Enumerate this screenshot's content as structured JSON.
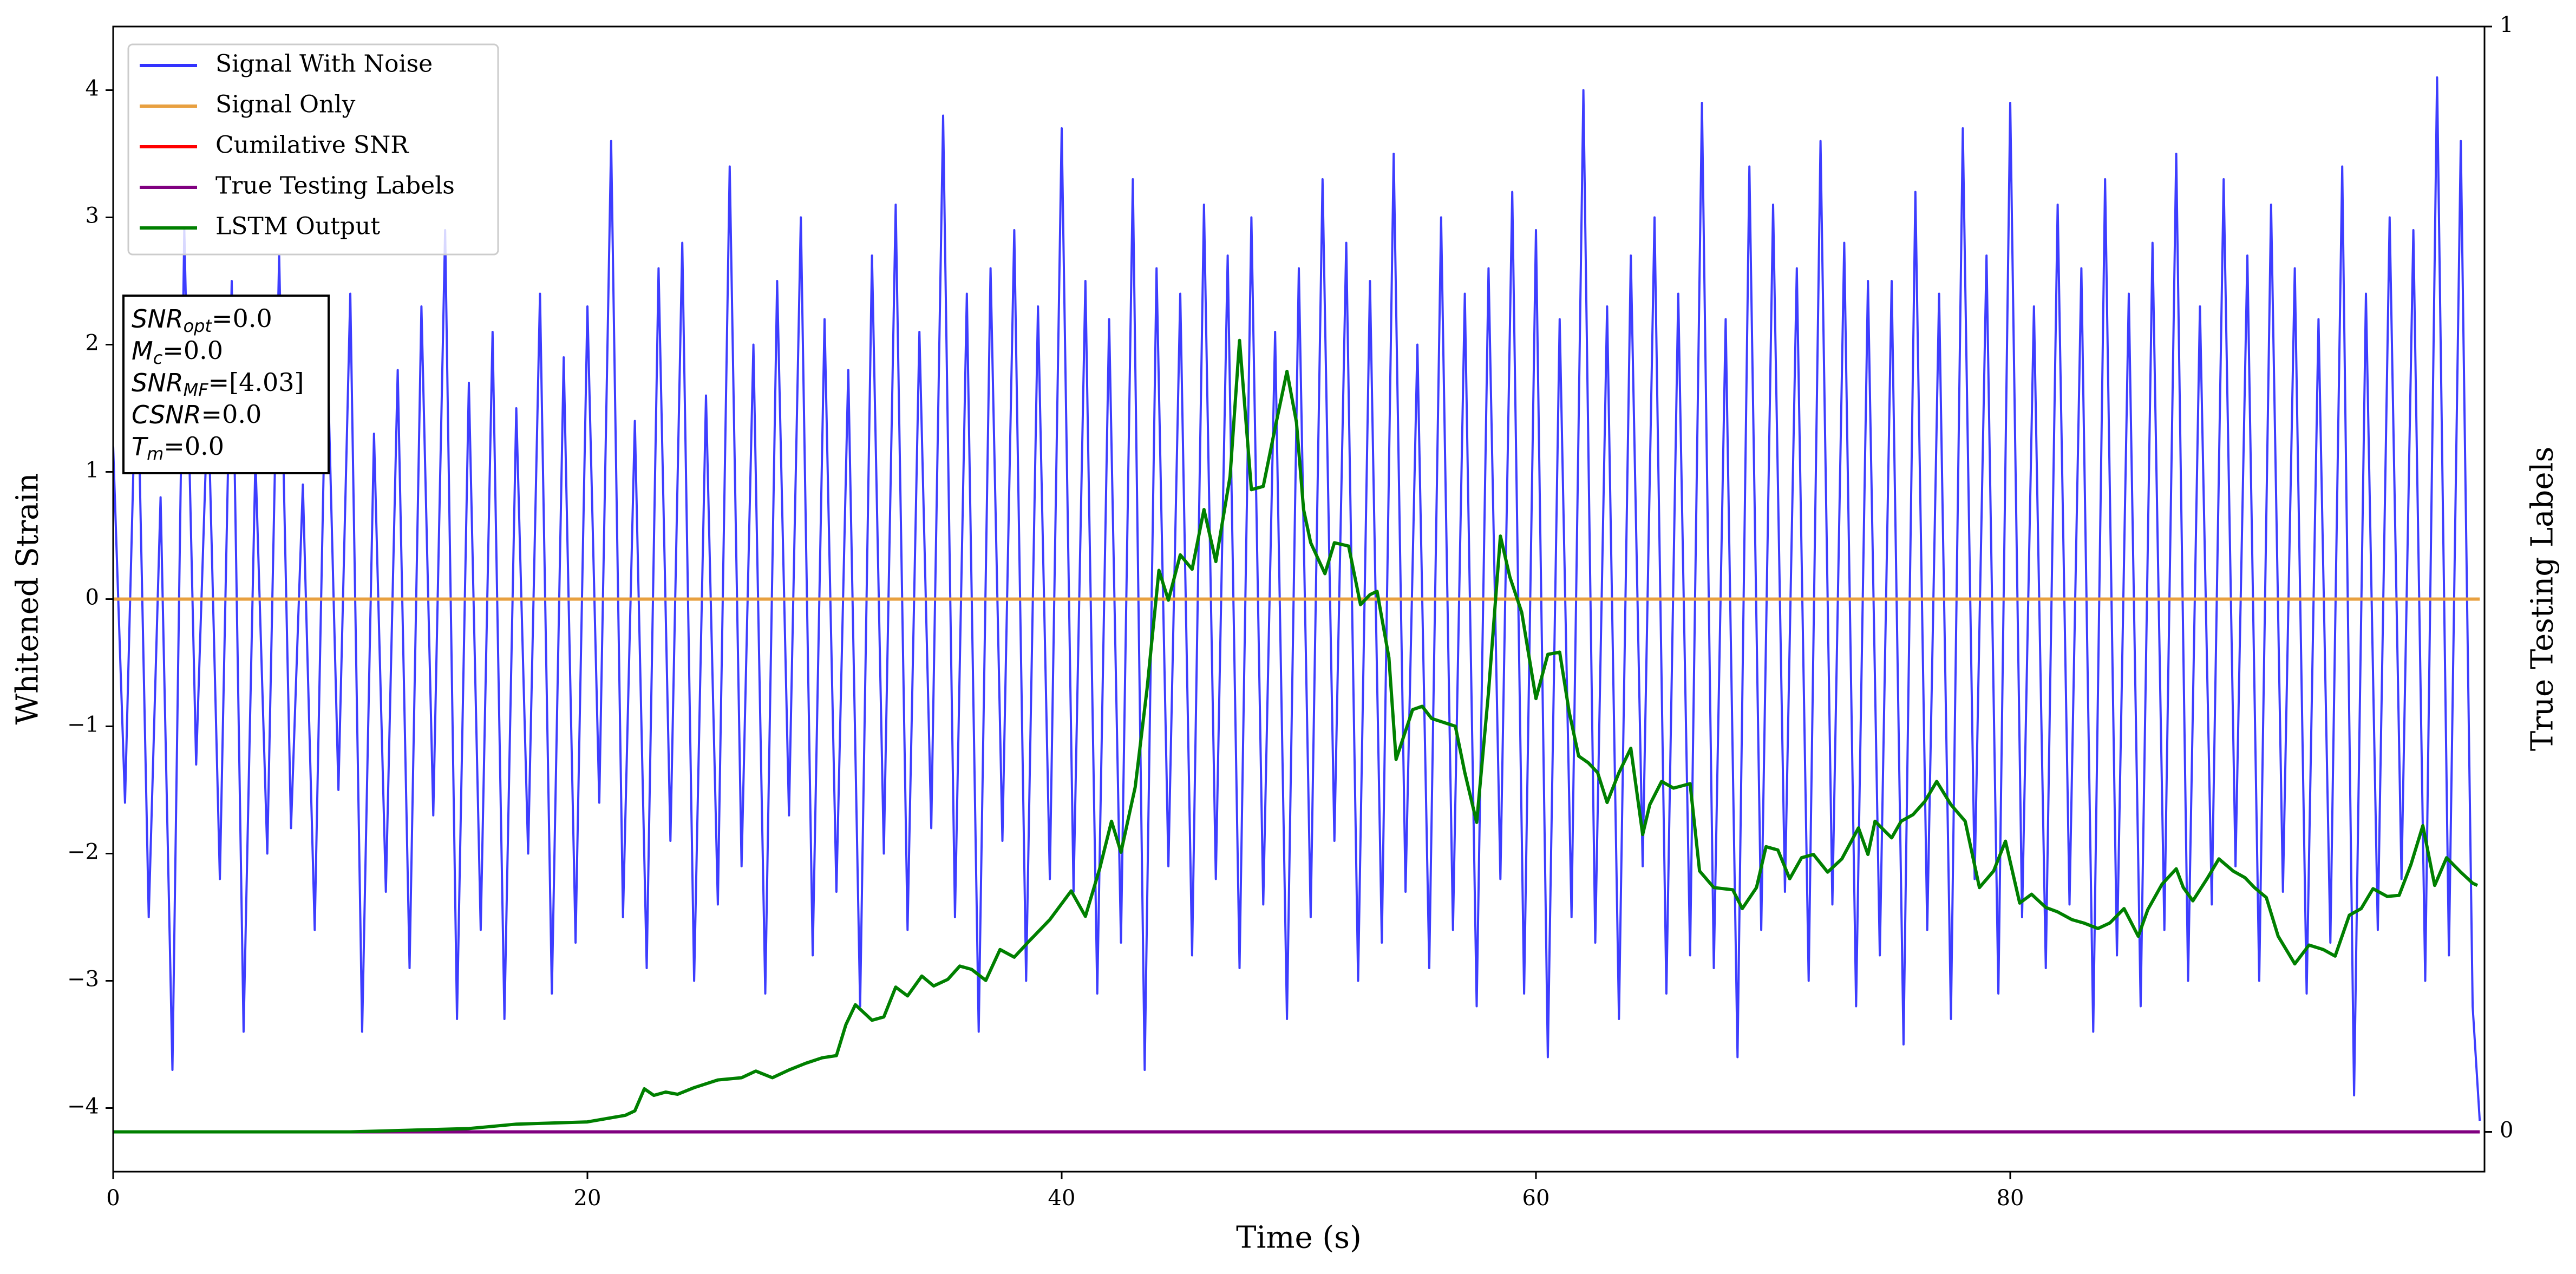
{
  "chart_data": {
    "type": "line",
    "xlabel": "Time (s)",
    "ylabel": "Whitened Strain",
    "y2label": "True Testing Labels",
    "xlim": [
      0,
      100
    ],
    "ylim": [
      -4.5,
      4.5
    ],
    "y2lim": [
      -0.036,
      1
    ],
    "xticks": [
      0,
      20,
      40,
      60,
      80
    ],
    "yticks": [
      {
        "value": -4,
        "label": "−4"
      },
      {
        "value": -3,
        "label": "−3"
      },
      {
        "value": -2,
        "label": "−2"
      },
      {
        "value": -1,
        "label": "−1"
      },
      0,
      1,
      2,
      3,
      4
    ],
    "y2ticks": [
      0,
      1
    ],
    "grid": false,
    "legend": "upper left",
    "annotations": [
      {
        "symbol": "SNR",
        "sub": "opt",
        "text": "=0.0"
      },
      {
        "symbol": "M",
        "sub": "c",
        "text": "=0.0"
      },
      {
        "symbol": "SNR",
        "sub": "MF",
        "text": "=[4.03]"
      },
      {
        "symbol": "CSNR",
        "text": "=0.0"
      },
      {
        "symbol": "T",
        "sub": "m",
        "text": "=0.0"
      }
    ],
    "series": [
      {
        "name": "Signal With Noise",
        "color": "#3333ff",
        "x": [
          0,
          0.5,
          1,
          1.5,
          2,
          2.5,
          3,
          3.5,
          4,
          4.5,
          5,
          5.5,
          6,
          6.5,
          7,
          7.5,
          8,
          8.5,
          9,
          9.5,
          10,
          10.5,
          11,
          11.5,
          12,
          12.5,
          13,
          13.5,
          14,
          14.5,
          15,
          15.5,
          16,
          16.5,
          17,
          17.5,
          18,
          18.5,
          19,
          19.5,
          20,
          20.5,
          21,
          21.5,
          22,
          22.5,
          23,
          23.5,
          24,
          24.5,
          25,
          25.5,
          26,
          26.5,
          27,
          27.5,
          28,
          28.5,
          29,
          29.5,
          30,
          30.5,
          31,
          31.5,
          32,
          32.5,
          33,
          33.5,
          34,
          34.5,
          35,
          35.5,
          36,
          36.5,
          37,
          37.5,
          38,
          38.5,
          39,
          39.5,
          40,
          40.5,
          41,
          41.5,
          42,
          42.5,
          43,
          43.5,
          44,
          44.5,
          45,
          45.5,
          46,
          46.5,
          47,
          47.5,
          48,
          48.5,
          49,
          49.5,
          50,
          50.5,
          51,
          51.5,
          52,
          52.5,
          53,
          53.5,
          54,
          54.5,
          55,
          55.5,
          56,
          56.5,
          57,
          57.5,
          58,
          58.5,
          59,
          59.5,
          60,
          60.5,
          61,
          61.5,
          62,
          62.5,
          63,
          63.5,
          64,
          64.5,
          65,
          65.5,
          66,
          66.5,
          67,
          67.5,
          68,
          68.5,
          69,
          69.5,
          70,
          70.5,
          71,
          71.5,
          72,
          72.5,
          73,
          73.5,
          74,
          74.5,
          75,
          75.5,
          76,
          76.5,
          77,
          77.5,
          78,
          78.5,
          79,
          79.5,
          80,
          80.5,
          81,
          81.5,
          82,
          82.5,
          83,
          83.5,
          84,
          84.5,
          85,
          85.5,
          86,
          86.5,
          87,
          87.5,
          88,
          88.5,
          89,
          89.5,
          90,
          90.5,
          91,
          91.5,
          92,
          92.5,
          93,
          93.5,
          94,
          94.5,
          95,
          95.5,
          96,
          96.5,
          97,
          97.5,
          98,
          98.5,
          99,
          99.5,
          99.8
        ],
        "values": [
          1.2,
          -1.6,
          2.1,
          -2.5,
          0.8,
          -3.7,
          2.9,
          -1.3,
          1.6,
          -2.2,
          2.5,
          -3.4,
          1.1,
          -2.0,
          2.7,
          -1.8,
          0.9,
          -2.6,
          2.2,
          -1.5,
          2.4,
          -3.4,
          1.3,
          -2.3,
          1.8,
          -2.9,
          2.3,
          -1.7,
          2.9,
          -3.3,
          1.7,
          -2.6,
          2.1,
          -3.3,
          1.5,
          -2.0,
          2.4,
          -3.1,
          1.9,
          -2.7,
          2.3,
          -1.6,
          3.6,
          -2.5,
          1.4,
          -2.9,
          2.6,
          -1.9,
          2.8,
          -3.0,
          1.6,
          -2.4,
          3.4,
          -2.1,
          2.0,
          -3.1,
          2.5,
          -1.7,
          3.0,
          -2.8,
          2.2,
          -2.3,
          1.8,
          -3.2,
          2.7,
          -2.0,
          3.1,
          -2.6,
          2.1,
          -1.8,
          3.8,
          -2.5,
          2.4,
          -3.4,
          2.6,
          -1.9,
          2.9,
          -3.0,
          2.3,
          -2.2,
          3.7,
          -2.3,
          2.5,
          -3.1,
          2.2,
          -2.7,
          3.3,
          -3.7,
          2.6,
          -2.1,
          2.4,
          -2.8,
          3.1,
          -2.2,
          2.7,
          -2.9,
          3.0,
          -2.4,
          2.1,
          -3.3,
          2.6,
          -2.5,
          3.3,
          -1.9,
          2.8,
          -3.0,
          2.5,
          -2.7,
          3.5,
          -2.3,
          2.0,
          -2.9,
          3.0,
          -2.6,
          2.4,
          -3.2,
          2.6,
          -2.2,
          3.2,
          -3.1,
          2.9,
          -3.6,
          2.2,
          -2.5,
          4.0,
          -2.7,
          2.3,
          -3.3,
          2.7,
          -2.1,
          3.0,
          -3.1,
          2.4,
          -2.8,
          3.9,
          -2.9,
          2.2,
          -3.6,
          3.4,
          -2.6,
          3.1,
          -2.3,
          2.6,
          -3.0,
          3.6,
          -2.4,
          2.8,
          -3.2,
          2.5,
          -2.8,
          2.5,
          -3.5,
          3.2,
          -2.6,
          2.4,
          -3.3,
          3.7,
          -2.2,
          2.7,
          -3.1,
          3.9,
          -2.5,
          2.3,
          -2.9,
          3.1,
          -2.4,
          2.6,
          -3.4,
          3.3,
          -2.8,
          2.4,
          -3.2,
          2.8,
          -2.6,
          3.5,
          -3.0,
          2.3,
          -2.4,
          3.3,
          -2.1,
          2.7,
          -3.0,
          3.1,
          -2.3,
          2.6,
          -3.1,
          2.2,
          -2.7,
          3.4,
          -3.9,
          2.4,
          -2.6,
          3.0,
          -2.2,
          2.9,
          -3.0,
          4.1,
          -2.8,
          3.6,
          -3.2,
          -4.1
        ]
      },
      {
        "name": "Signal Only",
        "color": "#e8a040",
        "x": [
          0,
          99.8
        ],
        "values": [
          0,
          0
        ]
      },
      {
        "name": "Cumilative SNR",
        "color": "#ff0000",
        "axis": "y2",
        "x": [
          0,
          99.8
        ],
        "values": [
          0,
          0
        ]
      },
      {
        "name": "True Testing Labels",
        "color": "#800080",
        "axis": "y2",
        "x": [
          0,
          99.8
        ],
        "values": [
          0,
          0
        ]
      },
      {
        "name": "LSTM Output",
        "color": "#008000",
        "axis": "y2",
        "x": [
          0,
          10,
          15,
          17,
          20,
          21.6,
          22,
          22.4,
          22.8,
          23.3,
          23.8,
          24.5,
          25.5,
          26.5,
          27.1,
          27.8,
          28.5,
          29.2,
          29.9,
          30.5,
          30.9,
          31.3,
          32,
          32.5,
          33,
          33.5,
          34.1,
          34.6,
          35.2,
          35.7,
          36.2,
          36.8,
          37.4,
          38,
          38.6,
          39.5,
          40.4,
          41,
          41.6,
          42.1,
          42.5,
          43.1,
          43.6,
          44.1,
          44.5,
          45,
          45.5,
          46,
          46.5,
          47.1,
          47.5,
          48,
          48.5,
          49,
          49.5,
          49.9,
          50.2,
          50.5,
          51.1,
          51.5,
          52.1,
          52.6,
          53,
          53.3,
          53.8,
          54.1,
          54.8,
          55.2,
          55.6,
          56.6,
          57,
          57.5,
          58,
          58.5,
          58.9,
          59.4,
          60,
          60.5,
          61,
          61.4,
          61.8,
          62.2,
          62.6,
          63,
          63.5,
          64,
          64.5,
          64.8,
          65.3,
          65.8,
          66.5,
          66.9,
          67.5,
          68.3,
          68.7,
          69.3,
          69.7,
          70.2,
          70.7,
          71.2,
          71.7,
          72.3,
          72.9,
          73.6,
          74,
          74.3,
          75,
          75.4,
          75.9,
          76.4,
          76.9,
          77.5,
          78.1,
          78.7,
          79.3,
          79.8,
          80.4,
          80.9,
          81.5,
          82,
          82.6,
          83.1,
          83.7,
          84.2,
          84.8,
          85.4,
          85.8,
          86.4,
          87,
          87.3,
          87.7,
          88.3,
          88.8,
          89.4,
          89.9,
          90.3,
          90.8,
          91.3,
          92,
          92.6,
          93.2,
          93.7,
          94.3,
          94.8,
          95.3,
          95.9,
          96.4,
          96.9,
          97.4,
          97.9,
          98.4,
          99,
          99.5,
          99.7
        ],
        "values": [
          0,
          0,
          0.003,
          0.007,
          0.009,
          0.015,
          0.019,
          0.039,
          0.033,
          0.036,
          0.034,
          0.04,
          0.047,
          0.049,
          0.055,
          0.049,
          0.056,
          0.062,
          0.067,
          0.069,
          0.097,
          0.115,
          0.101,
          0.104,
          0.131,
          0.123,
          0.141,
          0.132,
          0.138,
          0.15,
          0.147,
          0.137,
          0.165,
          0.158,
          0.172,
          0.192,
          0.218,
          0.195,
          0.238,
          0.281,
          0.253,
          0.312,
          0.401,
          0.508,
          0.481,
          0.522,
          0.509,
          0.563,
          0.516,
          0.593,
          0.716,
          0.581,
          0.584,
          0.637,
          0.688,
          0.642,
          0.563,
          0.533,
          0.505,
          0.533,
          0.53,
          0.477,
          0.486,
          0.489,
          0.429,
          0.337,
          0.382,
          0.385,
          0.374,
          0.367,
          0.325,
          0.28,
          0.398,
          0.539,
          0.502,
          0.47,
          0.392,
          0.432,
          0.434,
          0.38,
          0.34,
          0.334,
          0.325,
          0.298,
          0.325,
          0.347,
          0.269,
          0.296,
          0.317,
          0.311,
          0.315,
          0.236,
          0.221,
          0.219,
          0.202,
          0.221,
          0.258,
          0.255,
          0.229,
          0.248,
          0.251,
          0.235,
          0.247,
          0.275,
          0.251,
          0.281,
          0.266,
          0.281,
          0.287,
          0.299,
          0.317,
          0.296,
          0.281,
          0.221,
          0.236,
          0.263,
          0.207,
          0.215,
          0.203,
          0.199,
          0.192,
          0.189,
          0.184,
          0.189,
          0.202,
          0.177,
          0.201,
          0.224,
          0.238,
          0.221,
          0.209,
          0.229,
          0.247,
          0.236,
          0.23,
          0.221,
          0.212,
          0.177,
          0.152,
          0.169,
          0.165,
          0.159,
          0.196,
          0.202,
          0.22,
          0.213,
          0.214,
          0.242,
          0.277,
          0.223,
          0.248,
          0.235,
          0.225,
          0.223
        ]
      }
    ]
  }
}
